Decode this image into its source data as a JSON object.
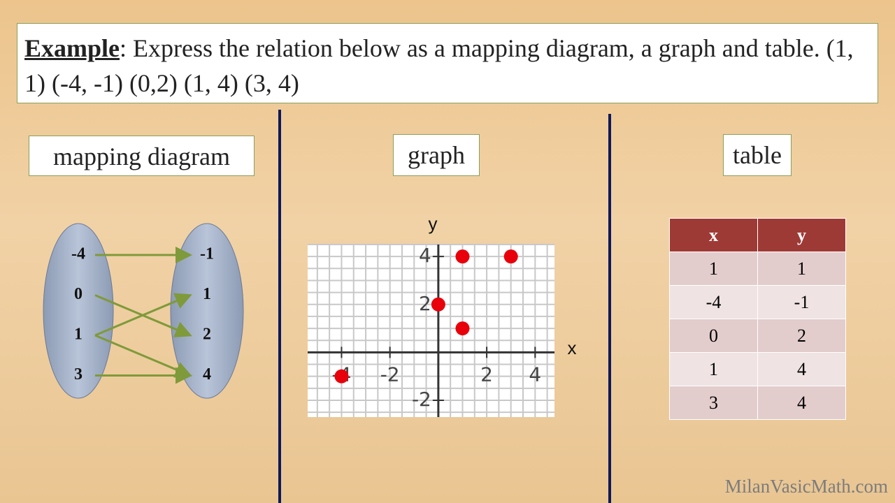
{
  "header": {
    "label": "Example",
    "text": ": Express the relation below as a mapping diagram, a graph and table. (1, 1) (-4, -1) (0,2) (1, 4) (3, 4)"
  },
  "mapping": {
    "title": "mapping diagram",
    "domain": [
      -4,
      0,
      1,
      3
    ],
    "range": [
      -1,
      1,
      2,
      4
    ]
  },
  "graph": {
    "title": "graph",
    "x_label": "x",
    "y_label": "y",
    "x": [
      1,
      -4,
      0,
      1,
      3
    ],
    "y": [
      1,
      -1,
      2,
      4,
      4
    ],
    "color": "#e8000b",
    "xlim": [
      -5.4,
      4.8
    ],
    "ylim": [
      -2.7,
      4.5
    ],
    "xticks": [
      -4,
      -2,
      2,
      4
    ],
    "yticks": [
      -2,
      2,
      4
    ],
    "grid": true
  },
  "table": {
    "title": "table",
    "header": [
      "x",
      "y"
    ],
    "rows": [
      [
        1,
        1
      ],
      [
        -4,
        -1
      ],
      [
        0,
        2
      ],
      [
        1,
        4
      ],
      [
        3,
        4
      ]
    ]
  },
  "watermark": "MilanVasicMath.com"
}
